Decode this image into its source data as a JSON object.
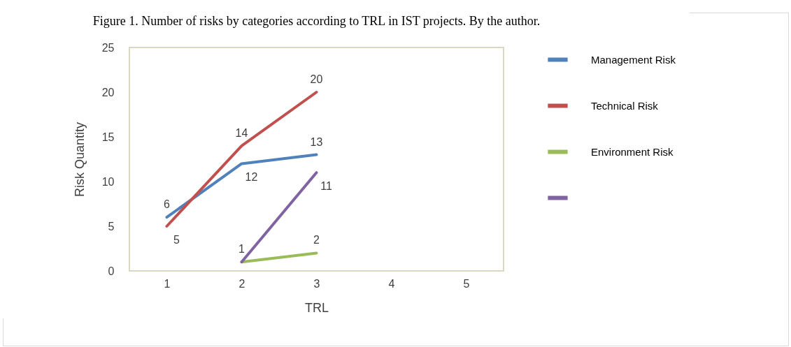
{
  "chart_data": {
    "type": "line",
    "title": "Figure 1. Number of risks by categories according to TRL in IST projects. By the author.",
    "xlabel": "TRL",
    "ylabel": "Risk Quantity",
    "categories": [
      "1",
      "2",
      "3",
      "4",
      "5"
    ],
    "series": [
      {
        "name": "Management Risk",
        "color": "#4f81bd",
        "values": [
          6,
          12,
          13,
          null,
          null
        ],
        "value_labels": [
          "6",
          "12",
          "13",
          null,
          null
        ]
      },
      {
        "name": "Technical Risk",
        "color": "#c0504d",
        "values": [
          5,
          14,
          20,
          null,
          null
        ],
        "value_labels": [
          "5",
          "14",
          "20",
          null,
          null
        ]
      },
      {
        "name": "Environment Risk",
        "color": "#9bbb59",
        "values": [
          null,
          1,
          2,
          null,
          null
        ],
        "value_labels": [
          null,
          null,
          "2",
          null,
          null
        ]
      },
      {
        "color": "#8064a2",
        "values": [
          null,
          1,
          11,
          null,
          null
        ],
        "value_labels": [
          null,
          "1",
          "11",
          null,
          null
        ]
      }
    ],
    "ylim": [
      0,
      25
    ],
    "yticks": [
      0,
      5,
      10,
      15,
      20,
      25
    ],
    "grid": false,
    "legend": "right",
    "marker": "none",
    "line_style": "solid"
  }
}
